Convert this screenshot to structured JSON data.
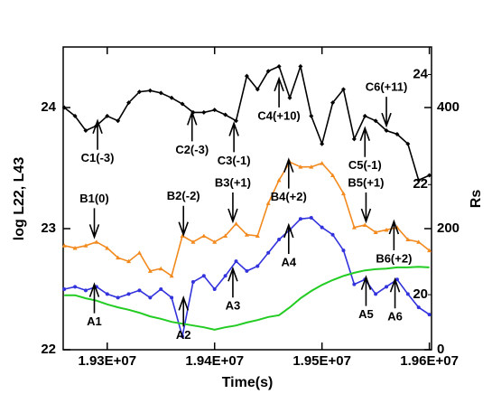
{
  "chart_data": {
    "type": "line",
    "xlabel": "Time(s)",
    "ylabel": "log L22, L43",
    "y2label": "Rs",
    "xlim": [
      19259000,
      19602000
    ],
    "xticks": [
      {
        "value": 19300000,
        "label": "1.93E+07"
      },
      {
        "value": 19400000,
        "label": "1.94E+07"
      },
      {
        "value": 19500000,
        "label": "1.95E+07"
      },
      {
        "value": 19600000,
        "label": "1.96E+07"
      }
    ],
    "ylim": [
      22,
      24.5
    ],
    "yticks": [
      22,
      23,
      24
    ],
    "y2lim": [
      0,
      500
    ],
    "y2ticks": [
      0,
      200,
      400
    ],
    "y3lim": [
      19,
      24.5
    ],
    "y3ticks": [
      20,
      22,
      24
    ],
    "x": [
      19260000,
      19270000,
      19280000,
      19290000,
      19300000,
      19310000,
      19320000,
      19330000,
      19340000,
      19350000,
      19360000,
      19370000,
      19380000,
      19390000,
      19400000,
      19410000,
      19420000,
      19430000,
      19440000,
      19450000,
      19460000,
      19470000,
      19480000,
      19490000,
      19500000,
      19510000,
      19520000,
      19530000,
      19540000,
      19550000,
      19560000,
      19570000,
      19580000,
      19590000,
      19600000
    ],
    "series": [
      {
        "color": "#000000",
        "marker": "diamond",
        "values": [
          24.0,
          23.93,
          23.81,
          23.85,
          23.93,
          23.89,
          24.04,
          24.13,
          24.14,
          24.12,
          24.08,
          24.03,
          23.96,
          23.96,
          23.98,
          23.94,
          23.89,
          24.26,
          24.15,
          24.3,
          24.34,
          24.08,
          24.34,
          23.93,
          23.7,
          24.04,
          24.15,
          23.74,
          23.93,
          23.89,
          23.81,
          23.78,
          23.7,
          23.4,
          23.44
        ]
      },
      {
        "color": "#f28a1e",
        "marker": "triangle",
        "values": [
          22.86,
          22.84,
          22.86,
          22.89,
          22.84,
          22.76,
          22.73,
          22.8,
          22.65,
          22.67,
          22.61,
          22.94,
          22.89,
          22.94,
          22.89,
          22.94,
          23.04,
          22.95,
          22.94,
          23.21,
          23.4,
          23.55,
          23.51,
          23.51,
          23.54,
          23.44,
          23.29,
          23.01,
          23.03,
          22.97,
          22.99,
          23.01,
          22.91,
          22.89,
          22.82
        ]
      },
      {
        "color": "#3333dd",
        "marker": "circle",
        "values": [
          22.5,
          22.52,
          22.49,
          22.52,
          22.46,
          22.43,
          22.46,
          22.49,
          22.43,
          22.5,
          22.43,
          22.11,
          22.56,
          22.61,
          22.5,
          22.61,
          22.73,
          22.65,
          22.69,
          22.8,
          22.91,
          22.99,
          23.08,
          23.09,
          23.01,
          22.95,
          22.82,
          22.54,
          22.58,
          22.46,
          22.52,
          22.58,
          22.46,
          22.35,
          22.29
        ]
      },
      {
        "color": "#22cc22",
        "marker": "none",
        "axis": "y2",
        "values": [
          90,
          90,
          85,
          81,
          75,
          70,
          66,
          61,
          55,
          51,
          46,
          43,
          40,
          37,
          33,
          37,
          40,
          45,
          49,
          54,
          57,
          70,
          85,
          97,
          107,
          115,
          122,
          127,
          131,
          133,
          134,
          136,
          136,
          137,
          136
        ]
      }
    ],
    "annotations": [
      {
        "text": "C1(-3)",
        "x": 19291000,
        "y": 23.89,
        "dir": "up"
      },
      {
        "text": "C2(-3)",
        "x": 19379000,
        "y": 23.96,
        "dir": "up"
      },
      {
        "text": "C3(-1)",
        "x": 19418000,
        "y": 23.87,
        "dir": "up"
      },
      {
        "text": "C4(+10)",
        "x": 19460000,
        "y": 24.24,
        "dir": "up"
      },
      {
        "text": "C5(-1)",
        "x": 19540000,
        "y": 23.83,
        "dir": "up"
      },
      {
        "text": "C6(+11)",
        "x": 19560000,
        "y": 23.85,
        "dir": "down"
      },
      {
        "text": "B1(0)",
        "x": 19288000,
        "y": 22.93,
        "dir": "down"
      },
      {
        "text": "B2(-2)",
        "x": 19371000,
        "y": 22.95,
        "dir": "down"
      },
      {
        "text": "B3(+1)",
        "x": 19417000,
        "y": 23.06,
        "dir": "down"
      },
      {
        "text": "B4(+2)",
        "x": 19469000,
        "y": 23.57,
        "dir": "up"
      },
      {
        "text": "B5(+1)",
        "x": 19541000,
        "y": 23.06,
        "dir": "down"
      },
      {
        "text": "B6(+2)",
        "x": 19567000,
        "y": 23.06,
        "dir": "up"
      },
      {
        "text": "A1",
        "x": 19288000,
        "y": 22.54,
        "dir": "up"
      },
      {
        "text": "A2",
        "x": 19371000,
        "y": 22.43,
        "dir": "up"
      },
      {
        "text": "A3",
        "x": 19417000,
        "y": 22.67,
        "dir": "up"
      },
      {
        "text": "A4",
        "x": 19469000,
        "y": 23.03,
        "dir": "up"
      },
      {
        "text": "A5",
        "x": 19541000,
        "y": 22.6,
        "dir": "up"
      },
      {
        "text": "A6",
        "x": 19568000,
        "y": 22.58,
        "dir": "up"
      }
    ]
  }
}
